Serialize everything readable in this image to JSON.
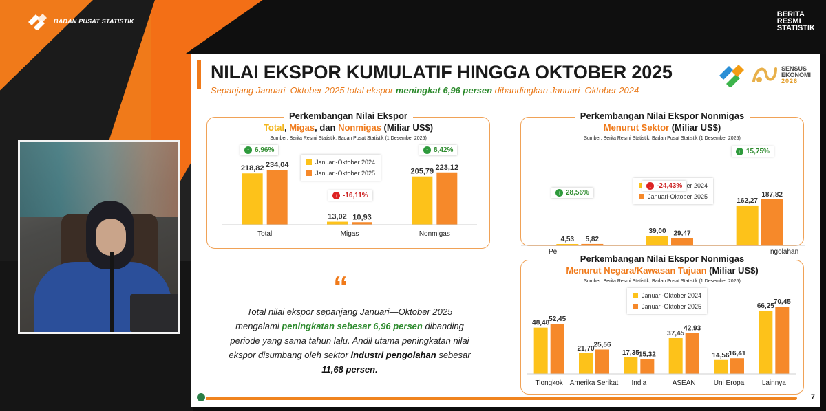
{
  "brand": {
    "bps_name": "BADAN PUSAT STATISTIK",
    "brs_lines": [
      "BERITA",
      "RESMI",
      "STATISTIK"
    ]
  },
  "slide": {
    "title": "NILAI EKSPOR KUMULATIF HINGGA OKTOBER 2025",
    "subtitle_pre": "Sepanjang Januari–Oktober 2025 total ekspor ",
    "subtitle_em": "meningkat 6,96 persen",
    "subtitle_post": " dibandingkan Januari–Oktober 2024",
    "se_logo": {
      "word1": "SENSUS",
      "word2": "EKONOMI",
      "year": "2026"
    },
    "page_number": "7",
    "source": "Sumber: Berita Resmi Statistik, Badan Pusat Statistik (1 Desember 2025)",
    "quote": {
      "line1": "Total nilai ekspor sepanjang Januari—Oktober 2025",
      "line2_pre": "mengalami ",
      "line2_em": "peningkatan sebesar 6,96 persen",
      "line2_post": " dibanding",
      "line3": "periode yang sama tahun lalu. Andil utama peningkatan nilai",
      "line4_pre": "ekspor disumbang oleh sektor ",
      "line4_em": "industri pengolahan",
      "line4_post": " sebesar",
      "line5": "11,68 persen."
    }
  },
  "colors": {
    "y2024": "#fdc21a",
    "y2025": "#f6892a",
    "accent": "#f07a1a",
    "green": "#2e8b2e",
    "red": "#cc2222"
  },
  "legend": {
    "y2024": "Januari-Oktober 2024",
    "y2025": "Januari-Oktober 2025"
  },
  "chart_data": [
    {
      "type": "bar",
      "title": "Perkembangan Nilai Ekspor",
      "title_line2": {
        "a": "Total",
        "b": "Migas",
        "c": "Nonmigas",
        "sep1": ", ",
        "sep2": ", dan ",
        "unit": " (Miliar US$)"
      },
      "categories": [
        "Total",
        "Migas",
        "Nonmigas"
      ],
      "series": [
        {
          "name": "Januari-Oktober 2024",
          "values": [
            218.82,
            13.02,
            205.79
          ],
          "labels": [
            "218,82",
            "13,02",
            "205,79"
          ]
        },
        {
          "name": "Januari-Oktober 2025",
          "values": [
            234.04,
            10.93,
            223.12
          ],
          "labels": [
            "234,04",
            "10,93",
            "223,12"
          ]
        }
      ],
      "changes": [
        {
          "dir": "up",
          "text": "6,96%"
        },
        {
          "dir": "down",
          "text": "-16,11%"
        },
        {
          "dir": "up",
          "text": "8,42%"
        }
      ],
      "ylim": [
        0,
        240
      ]
    },
    {
      "type": "bar",
      "title": "Perkembangan Nilai Ekspor Nonmigas",
      "title_line2": {
        "a": "Menurut Sektor",
        "unit": " (Miliar US$)"
      },
      "categories_visible": [
        "Pe",
        "ngolahan"
      ],
      "series": [
        {
          "name": "Januari-Oktober 2024",
          "values": [
            4.53,
            39.0,
            162.27
          ],
          "labels": [
            "4,53",
            "39,00",
            "162,27"
          ]
        },
        {
          "name": "Januari-Oktober 2025",
          "values": [
            5.82,
            29.47,
            187.82
          ],
          "labels": [
            "5,82",
            "29,47",
            "187,82"
          ]
        }
      ],
      "changes": [
        {
          "dir": "up",
          "text": "28,56%"
        },
        {
          "dir": "down",
          "text": "-24,43%"
        },
        {
          "dir": "up",
          "text": "15,75%"
        }
      ],
      "ylim": [
        0,
        190
      ]
    },
    {
      "type": "bar",
      "title": "Perkembangan Nilai Ekspor Nonmigas",
      "title_line2": {
        "a": "Menurut Negara/Kawasan Tujuan",
        "unit": " (Miliar US$)"
      },
      "categories": [
        "Tiongkok",
        "Amerika Serikat",
        "India",
        "ASEAN",
        "Uni Eropa",
        "Lainnya"
      ],
      "series": [
        {
          "name": "Januari-Oktober 2024",
          "values": [
            48.48,
            21.7,
            17.35,
            37.45,
            14.56,
            66.25
          ],
          "labels": [
            "48,48",
            "21,70",
            "17,35",
            "37,45",
            "14,56",
            "66,25"
          ]
        },
        {
          "name": "Januari-Oktober 2025",
          "values": [
            52.45,
            25.56,
            15.32,
            42.93,
            16.41,
            70.45
          ],
          "labels": [
            "52,45",
            "25,56",
            "15,32",
            "42,93",
            "16,41",
            "70,45"
          ]
        }
      ],
      "ylim": [
        0,
        72
      ]
    }
  ]
}
